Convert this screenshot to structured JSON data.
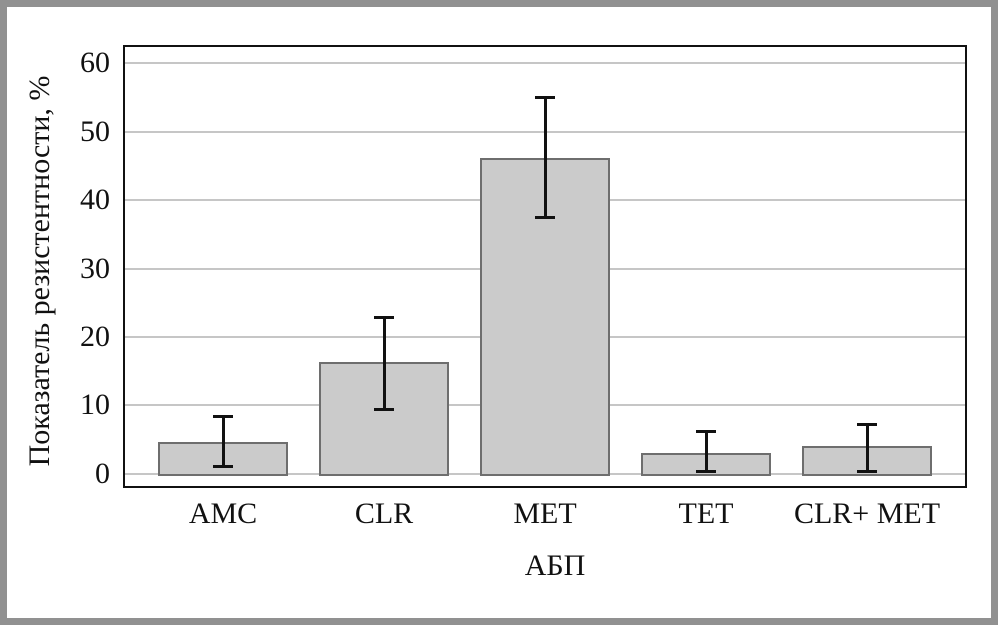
{
  "figure": {
    "outer_border_color": "#919191",
    "background_color": "#ffffff"
  },
  "chart_data": {
    "type": "bar",
    "title": "",
    "xlabel": "АБП",
    "ylabel": "Показатель резистентности, %",
    "categories": [
      "AMC",
      "CLR",
      "MET",
      "TET",
      "CLR+ MET"
    ],
    "values": [
      4.6,
      16.3,
      46.2,
      3.0,
      4.1
    ],
    "error_low": [
      1.0,
      9.3,
      37.4,
      0.2,
      0.3
    ],
    "error_high": [
      8.4,
      22.9,
      55.1,
      6.2,
      7.3
    ],
    "yticks": [
      0,
      10,
      20,
      30,
      40,
      50,
      60
    ],
    "ylim": [
      -1.8,
      62.4
    ],
    "grid": "horizontal",
    "legend": "none",
    "bar_fill_color": "#cbcbcb",
    "bar_border_color": "#6e6e6e",
    "gridline_color": "#c6c6c6",
    "frame_color": "#111111",
    "error_bar_color": "#111111"
  }
}
